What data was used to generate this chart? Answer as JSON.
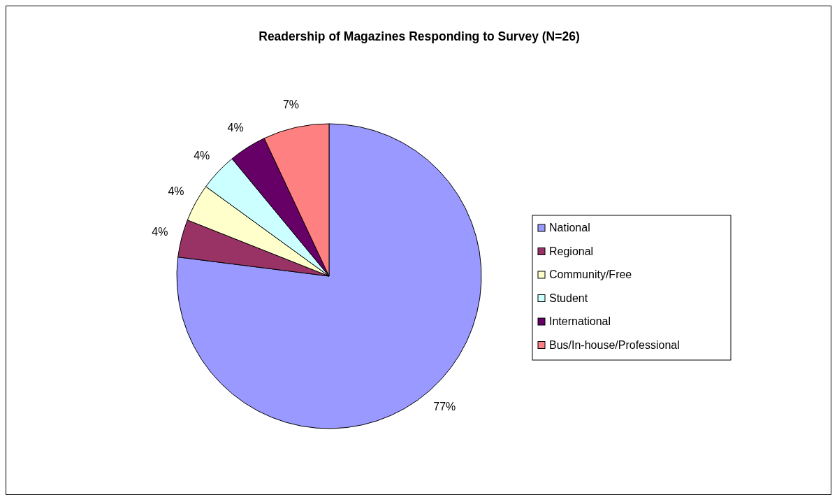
{
  "chart_data": {
    "type": "pie",
    "title": "Readership of Magazines Responding to Survey (N=26)",
    "categories": [
      "National",
      "Regional",
      "Community/Free",
      "Student",
      "International",
      "Bus/In-house/Professional"
    ],
    "values": [
      77,
      4,
      4,
      4,
      4,
      7
    ],
    "value_labels": [
      "77%",
      "4%",
      "4%",
      "4%",
      "4%",
      "7%"
    ],
    "colors": [
      "#9999ff",
      "#993366",
      "#ffffcc",
      "#ccffff",
      "#660066",
      "#ff8080"
    ],
    "legend": "right"
  }
}
